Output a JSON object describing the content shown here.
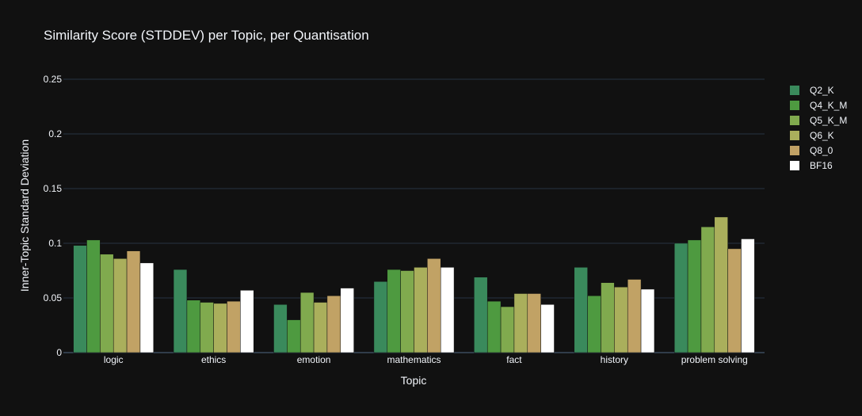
{
  "chart_data": {
    "type": "bar",
    "title": "Similarity Score (STDDEV) per Topic, per Quantisation",
    "xlabel": "Topic",
    "ylabel": "Inner-Topic Standard Deviation",
    "ylim": [
      0,
      0.25
    ],
    "yticks": [
      "0",
      "0.05",
      "0.1",
      "0.15",
      "0.2",
      "0.25"
    ],
    "ytick_values": [
      0,
      0.05,
      0.1,
      0.15,
      0.2,
      0.25
    ],
    "grid": true,
    "legend_position": "right",
    "categories": [
      "logic",
      "ethics",
      "emotion",
      "mathematics",
      "fact",
      "history",
      "problem solving"
    ],
    "series": [
      {
        "name": "Q2_K",
        "color": "#3a8a5c",
        "values": [
          0.098,
          0.076,
          0.044,
          0.065,
          0.069,
          0.078,
          0.1
        ]
      },
      {
        "name": "Q4_K_M",
        "color": "#4e9a40",
        "values": [
          0.103,
          0.048,
          0.03,
          0.076,
          0.047,
          0.052,
          0.103
        ]
      },
      {
        "name": "Q5_K_M",
        "color": "#80aa4e",
        "values": [
          0.09,
          0.046,
          0.055,
          0.075,
          0.042,
          0.064,
          0.115
        ]
      },
      {
        "name": "Q6_K",
        "color": "#aaaf5c",
        "values": [
          0.086,
          0.045,
          0.046,
          0.078,
          0.054,
          0.06,
          0.124
        ]
      },
      {
        "name": "Q8_0",
        "color": "#c1a265",
        "values": [
          0.093,
          0.047,
          0.052,
          0.086,
          0.054,
          0.067,
          0.095
        ]
      },
      {
        "name": "BF16",
        "color": "#ffffff",
        "values": [
          0.082,
          0.057,
          0.059,
          0.078,
          0.044,
          0.058,
          0.104
        ]
      }
    ]
  }
}
